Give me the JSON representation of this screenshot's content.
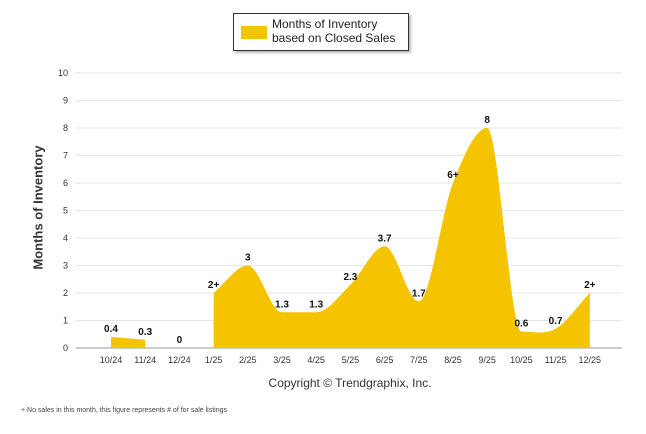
{
  "chart_data": {
    "type": "area",
    "title": "",
    "legend": "Months of Inventory based on Closed Sales",
    "legend_position": "top-center",
    "ylabel": "Months of Inventory",
    "xlabel": "Copyright © Trendgraphix, Inc.",
    "ylim": [
      0,
      10
    ],
    "yticks": [
      0,
      1,
      2,
      3,
      4,
      5,
      6,
      7,
      8,
      9,
      10
    ],
    "grid": true,
    "color": "#f5c400",
    "categories": [
      "10/24",
      "11/24",
      "12/24",
      "1/25",
      "2/25",
      "3/25",
      "4/25",
      "5/25",
      "6/25",
      "7/25",
      "8/25",
      "9/25",
      "10/25",
      "11/25",
      "12/25"
    ],
    "series": [
      {
        "name": "Months of Inventory based on Closed Sales",
        "values": [
          0.4,
          0.3,
          0,
          2,
          3,
          1.3,
          1.3,
          2.3,
          3.7,
          1.7,
          6,
          8,
          0.6,
          0.7,
          2
        ],
        "labels": [
          "0.4",
          "0.3",
          "0",
          "2+",
          "3",
          "1.3",
          "1.3",
          "2.3",
          "3.7",
          "1.7",
          "6+",
          "8",
          "0.6",
          "0.7",
          "2+"
        ],
        "segments": [
          [
            0,
            1
          ],
          [
            3,
            14
          ]
        ]
      }
    ],
    "footnote": "+ No sales in this month, this figure represents # of for sale listings"
  }
}
